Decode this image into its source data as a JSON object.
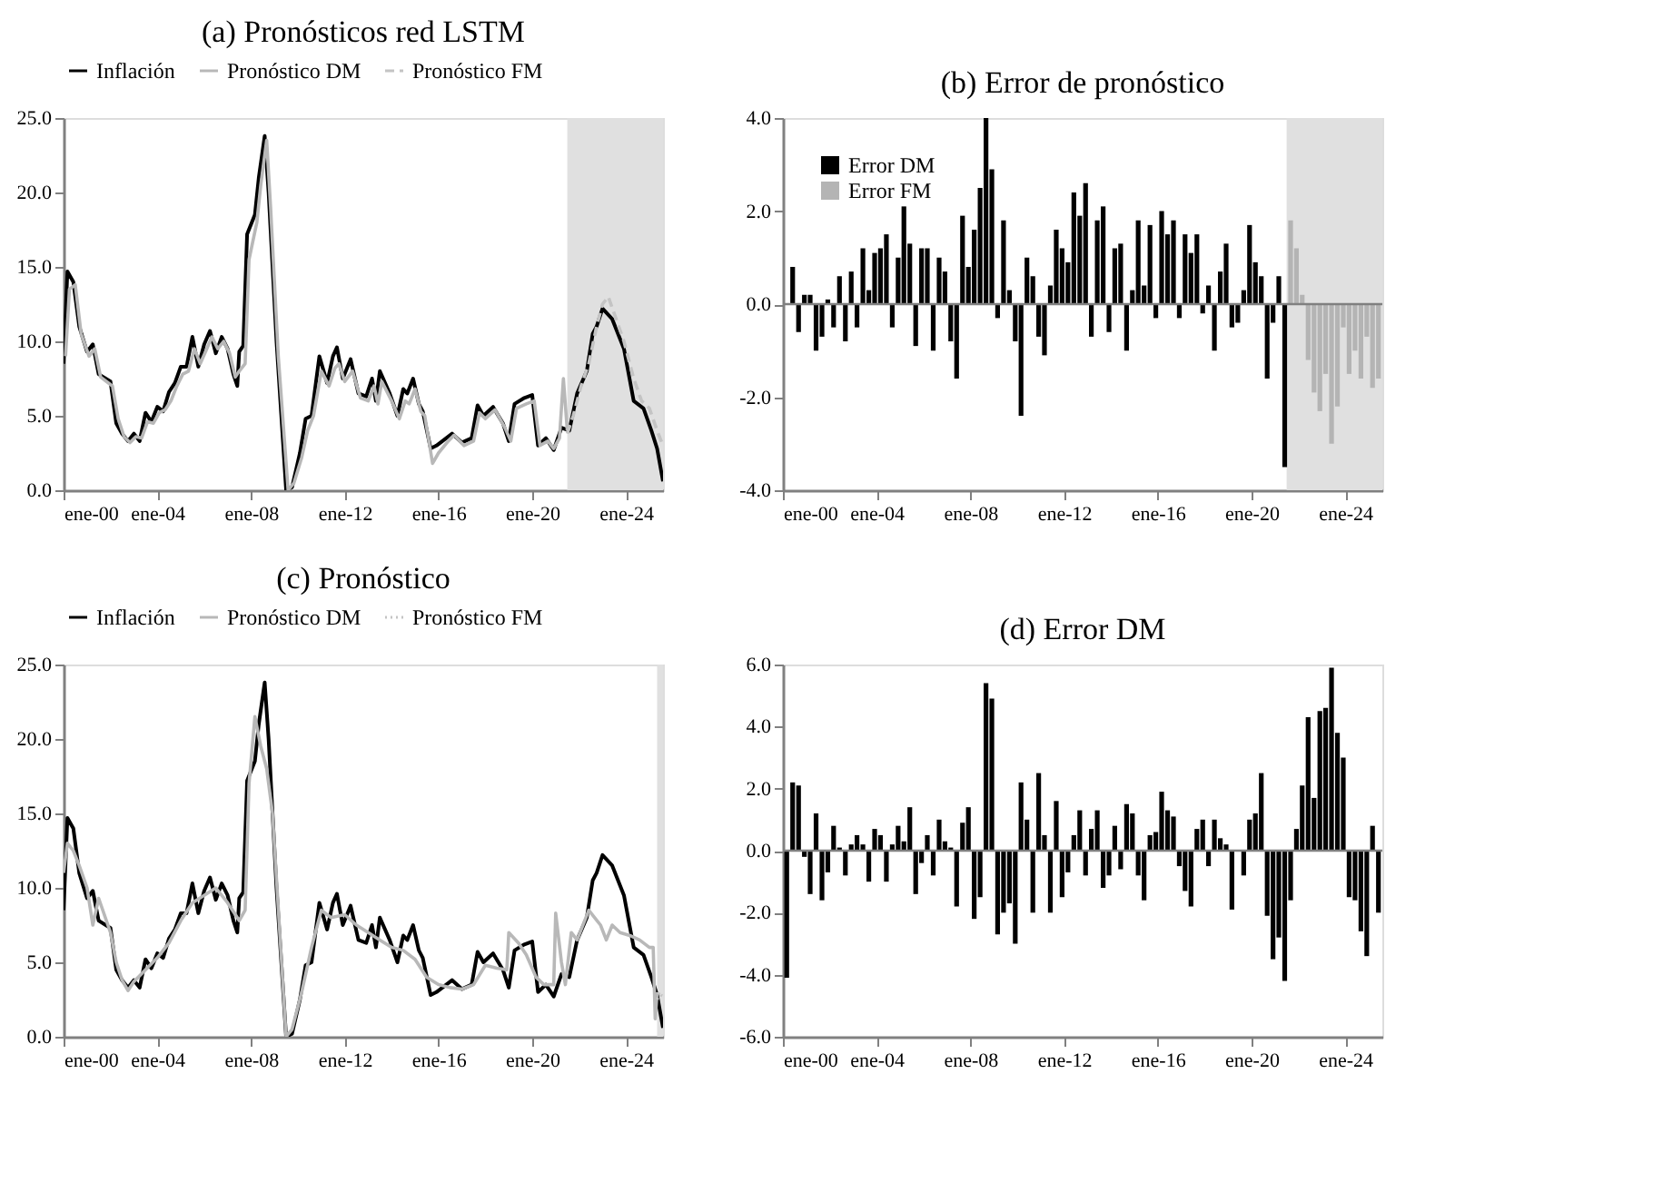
{
  "chart_data": [
    {
      "type": "line",
      "title": "(a) Pronósticos red LSTM",
      "xlim": [
        "2000-01",
        "2025-08"
      ],
      "ylim": [
        0,
        25
      ],
      "xticks": [
        {
          "value": "2000-01",
          "label": "ene-00"
        },
        {
          "value": "2004-01",
          "label": "ene-04"
        },
        {
          "value": "2008-01",
          "label": "ene-08"
        },
        {
          "value": "2012-01",
          "label": "ene-12"
        },
        {
          "value": "2016-01",
          "label": "ene-16"
        },
        {
          "value": "2020-01",
          "label": "ene-20"
        },
        {
          "value": "2024-01",
          "label": "ene-24"
        }
      ],
      "yticks": [
        {
          "value": 0,
          "label": "0.0"
        },
        {
          "value": 5,
          "label": "5.0"
        },
        {
          "value": 10,
          "label": "10.0"
        },
        {
          "value": 15,
          "label": "15.0"
        },
        {
          "value": 20,
          "label": "20.0"
        },
        {
          "value": 25,
          "label": "25.0"
        }
      ],
      "grid": false,
      "legend": "top",
      "bands": [
        {
          "axis": "x",
          "from": "2021-07",
          "to": "2025-08",
          "color": "#e0e0e0"
        }
      ],
      "series": [
        {
          "name": "Inflación",
          "color": "#000000",
          "line_style": "solid",
          "x": [
            "2000-01",
            "2000-03",
            "2000-06",
            "2000-09",
            "2001-01",
            "2001-04",
            "2001-07",
            "2002-01",
            "2002-04",
            "2002-07",
            "2002-10",
            "2003-01",
            "2003-04",
            "2003-07",
            "2003-10",
            "2004-01",
            "2004-04",
            "2004-07",
            "2004-10",
            "2005-01",
            "2005-04",
            "2005-07",
            "2005-10",
            "2006-01",
            "2006-04",
            "2006-07",
            "2006-10",
            "2007-01",
            "2007-04",
            "2007-06",
            "2007-07",
            "2007-09",
            "2007-11",
            "2008-03",
            "2008-05",
            "2008-08",
            "2008-10",
            "2009-02",
            "2009-07",
            "2009-10",
            "2010-02",
            "2010-05",
            "2010-08",
            "2010-09",
            "2010-12",
            "2011-04",
            "2011-07",
            "2011-09",
            "2011-12",
            "2012-04",
            "2012-08",
            "2012-12",
            "2013-03",
            "2013-05",
            "2013-07",
            "2013-12",
            "2014-04",
            "2014-07",
            "2014-09",
            "2014-12",
            "2015-03",
            "2015-05",
            "2015-09",
            "2015-12",
            "2016-05",
            "2016-08",
            "2017-01",
            "2017-06",
            "2017-09",
            "2017-12",
            "2018-05",
            "2018-10",
            "2019-01",
            "2019-04",
            "2019-09",
            "2020-01",
            "2020-04",
            "2020-08",
            "2020-12",
            "2021-04",
            "2021-08",
            "2021-12",
            "2022-05",
            "2022-08",
            "2022-10",
            "2023-01",
            "2023-06",
            "2023-12",
            "2024-05",
            "2024-10",
            "2025-02",
            "2025-05",
            "2025-08"
          ],
          "values": [
            8.5,
            14.7,
            14.0,
            11.0,
            9.3,
            9.8,
            7.8,
            7.3,
            4.5,
            3.8,
            3.3,
            3.8,
            3.3,
            5.2,
            4.6,
            5.6,
            5.3,
            6.6,
            7.2,
            8.3,
            8.3,
            10.3,
            8.3,
            9.8,
            10.7,
            9.2,
            10.3,
            9.5,
            7.8,
            7.0,
            9.3,
            9.7,
            17.2,
            18.5,
            21.0,
            23.8,
            20.0,
            10.0,
            0.0,
            0.2,
            2.5,
            4.8,
            5.0,
            6.0,
            9.0,
            7.2,
            9.0,
            9.6,
            7.5,
            8.8,
            6.5,
            6.3,
            7.5,
            6.0,
            8.0,
            6.5,
            5.0,
            6.8,
            6.5,
            7.5,
            5.8,
            5.3,
            2.8,
            3.0,
            3.5,
            3.8,
            3.2,
            3.5,
            5.7,
            5.0,
            5.6,
            4.5,
            3.3,
            5.8,
            6.2,
            6.4,
            3.0,
            3.5,
            2.7,
            4.2,
            4.0,
            6.5,
            8.0,
            10.5,
            11.0,
            12.2,
            11.5,
            9.5,
            6.0,
            5.5,
            4.0,
            2.8,
            0.6
          ]
        },
        {
          "name": "Pronóstico DM",
          "color": "#b8b8b8",
          "line_style": "solid",
          "x": [
            "2000-02",
            "2000-04",
            "2000-07",
            "2000-10",
            "2001-02",
            "2001-05",
            "2001-08",
            "2002-02",
            "2002-05",
            "2002-08",
            "2002-11",
            "2003-02",
            "2003-05",
            "2003-08",
            "2003-11",
            "2004-02",
            "2004-05",
            "2004-08",
            "2004-11",
            "2005-02",
            "2005-05",
            "2005-08",
            "2005-11",
            "2006-02",
            "2006-05",
            "2006-08",
            "2006-11",
            "2007-02",
            "2007-05",
            "2007-07",
            "2007-10",
            "2007-12",
            "2008-04",
            "2008-06",
            "2008-09",
            "2008-11",
            "2009-03",
            "2009-08",
            "2009-11",
            "2010-03",
            "2010-06",
            "2010-09",
            "2010-11",
            "2011-01",
            "2011-05",
            "2011-08",
            "2011-10",
            "2012-01",
            "2012-05",
            "2012-09",
            "2013-01",
            "2013-04",
            "2013-06",
            "2013-08",
            "2014-01",
            "2014-05",
            "2014-08",
            "2014-10",
            "2015-01",
            "2015-04",
            "2015-06",
            "2015-10",
            "2016-01",
            "2016-06",
            "2016-09",
            "2017-02",
            "2017-07",
            "2017-10",
            "2018-01",
            "2018-06",
            "2018-11",
            "2019-02",
            "2019-05",
            "2019-10",
            "2020-02",
            "2020-05",
            "2020-09",
            "2020-12",
            "2021-03",
            "2021-05",
            "2021-07"
          ],
          "values": [
            9.0,
            13.5,
            13.8,
            10.5,
            9.0,
            9.5,
            7.6,
            7.0,
            4.8,
            3.6,
            3.2,
            3.6,
            3.5,
            4.6,
            4.5,
            5.2,
            5.4,
            6.0,
            7.0,
            7.8,
            8.0,
            9.5,
            8.5,
            9.4,
            10.3,
            9.5,
            10.0,
            9.2,
            7.6,
            8.0,
            8.5,
            15.5,
            18.0,
            20.5,
            23.5,
            19.0,
            9.0,
            0.0,
            0.5,
            2.2,
            4.0,
            5.0,
            6.5,
            8.0,
            7.0,
            8.2,
            8.5,
            7.3,
            8.0,
            6.2,
            6.0,
            7.0,
            5.8,
            7.3,
            6.0,
            4.8,
            6.0,
            5.8,
            6.8,
            5.3,
            5.0,
            1.8,
            2.5,
            3.3,
            3.7,
            3.0,
            3.3,
            5.2,
            4.8,
            5.4,
            4.2,
            3.3,
            5.5,
            5.8,
            6.0,
            3.0,
            3.3,
            2.8,
            3.5,
            7.5,
            4.0
          ]
        },
        {
          "name": "Pronóstico FM",
          "color": "#c4c4c4",
          "line_style": "dashed",
          "x": [
            "2021-07",
            "2021-10",
            "2022-02",
            "2022-06",
            "2022-10",
            "2023-01",
            "2023-04",
            "2023-08",
            "2023-12",
            "2024-05",
            "2024-09",
            "2025-01",
            "2025-05",
            "2025-08"
          ],
          "values": [
            3.8,
            5.0,
            7.0,
            8.5,
            11.0,
            12.5,
            13.0,
            11.5,
            10.0,
            7.5,
            6.0,
            5.5,
            4.0,
            3.0
          ]
        }
      ]
    },
    {
      "type": "bar",
      "title": "(b) Error de pronóstico",
      "xlim": [
        "2000-01",
        "2025-08"
      ],
      "ylim": [
        -4,
        4
      ],
      "x": [
        "2000-06",
        "2000-09",
        "2000-12",
        "2001-03",
        "2001-06",
        "2001-09",
        "2001-12",
        "2002-03",
        "2002-06",
        "2002-09",
        "2002-12",
        "2003-03",
        "2003-06",
        "2003-09",
        "2003-12",
        "2004-03",
        "2004-06",
        "2004-09",
        "2004-12",
        "2005-03",
        "2005-06",
        "2005-09",
        "2005-12",
        "2006-03",
        "2006-06",
        "2006-09",
        "2006-12",
        "2007-03",
        "2007-06",
        "2007-09",
        "2007-12",
        "2008-03",
        "2008-06",
        "2008-09",
        "2008-12",
        "2009-03",
        "2009-06",
        "2009-09",
        "2009-12",
        "2010-03",
        "2010-06",
        "2010-09",
        "2010-12",
        "2011-03",
        "2011-06",
        "2011-09",
        "2011-12",
        "2012-03",
        "2012-06",
        "2012-09",
        "2012-12",
        "2013-03",
        "2013-06",
        "2013-09",
        "2013-12",
        "2014-03",
        "2014-06",
        "2014-09",
        "2014-12",
        "2015-03",
        "2015-06",
        "2015-09",
        "2015-12",
        "2016-03",
        "2016-06",
        "2016-09",
        "2016-12",
        "2017-03",
        "2017-06",
        "2017-09",
        "2017-12",
        "2018-03",
        "2018-06",
        "2018-09",
        "2018-12",
        "2019-03",
        "2019-06",
        "2019-09",
        "2019-12",
        "2020-03",
        "2020-06",
        "2020-09",
        "2020-12",
        "2021-03",
        "2021-06",
        "2021-09",
        "2021-12",
        "2022-03",
        "2022-06",
        "2022-09",
        "2022-12",
        "2023-03",
        "2023-06",
        "2023-09",
        "2023-12",
        "2024-03",
        "2024-06",
        "2024-09",
        "2024-12",
        "2025-03",
        "2025-06"
      ],
      "xticks": [
        {
          "value": "2000-01",
          "label": "ene-00"
        },
        {
          "value": "2004-01",
          "label": "ene-04"
        },
        {
          "value": "2008-01",
          "label": "ene-08"
        },
        {
          "value": "2012-01",
          "label": "ene-12"
        },
        {
          "value": "2016-01",
          "label": "ene-16"
        },
        {
          "value": "2020-01",
          "label": "ene-20"
        },
        {
          "value": "2024-01",
          "label": "ene-24"
        }
      ],
      "yticks": [
        {
          "value": -4,
          "label": "-4.0"
        },
        {
          "value": -2,
          "label": "-2.0"
        },
        {
          "value": 0,
          "label": "0.0"
        },
        {
          "value": 2,
          "label": "2.0"
        },
        {
          "value": 4,
          "label": "4.0"
        }
      ],
      "grid": false,
      "legend": "top left",
      "bands": [
        {
          "axis": "x",
          "from": "2021-07",
          "to": "2025-08",
          "color": "#e0e0e0"
        }
      ],
      "ref_lines": [
        {
          "axis": "y",
          "value": 0,
          "color": "#808080"
        }
      ],
      "series": [
        {
          "name": "Error DM",
          "color": "#000000",
          "values": [
            0.8,
            -0.6,
            0.2,
            0.2,
            -1.0,
            -0.7,
            0.1,
            -0.5,
            0.6,
            -0.8,
            0.7,
            -0.5,
            1.2,
            0.3,
            1.1,
            1.2,
            1.5,
            -0.5,
            1.0,
            2.1,
            1.3,
            -0.9,
            1.2,
            1.2,
            -1.0,
            1.0,
            0.7,
            -0.8,
            -1.6,
            1.9,
            0.8,
            1.6,
            2.5,
            4.0,
            2.9,
            -0.3,
            1.8,
            0.3,
            -0.8,
            -2.4,
            1.0,
            0.6,
            -0.7,
            -1.1,
            0.4,
            1.6,
            1.2,
            0.9,
            2.4,
            1.9,
            2.6,
            -0.7,
            1.8,
            2.1,
            -0.6,
            1.2,
            1.3,
            -1.0,
            0.3,
            1.8,
            0.4,
            1.7,
            -0.3,
            2.0,
            1.5,
            1.8,
            -0.3,
            1.5,
            1.1,
            1.5,
            -0.2,
            0.4,
            -1.0,
            0.7,
            1.3,
            -0.5,
            -0.4,
            0.3,
            1.7,
            0.9,
            0.6,
            -1.6,
            -0.4,
            0.6,
            -3.5,
            null,
            null,
            null,
            null,
            null,
            null,
            null,
            null,
            null,
            null,
            null,
            null,
            null,
            null,
            null,
            null
          ]
        },
        {
          "name": "Error FM",
          "color": "#b4b4b4",
          "values": [
            null,
            null,
            null,
            null,
            null,
            null,
            null,
            null,
            null,
            null,
            null,
            null,
            null,
            null,
            null,
            null,
            null,
            null,
            null,
            null,
            null,
            null,
            null,
            null,
            null,
            null,
            null,
            null,
            null,
            null,
            null,
            null,
            null,
            null,
            null,
            null,
            null,
            null,
            null,
            null,
            null,
            null,
            null,
            null,
            null,
            null,
            null,
            null,
            null,
            null,
            null,
            null,
            null,
            null,
            null,
            null,
            null,
            null,
            null,
            null,
            null,
            null,
            null,
            null,
            null,
            null,
            null,
            null,
            null,
            null,
            null,
            null,
            null,
            null,
            null,
            null,
            null,
            null,
            null,
            null,
            null,
            null,
            null,
            null,
            null,
            1.8,
            1.2,
            0.2,
            -1.2,
            -1.9,
            -2.3,
            -1.5,
            -3.0,
            -2.2,
            -0.5,
            -1.5,
            -1.0,
            -1.6,
            -0.7,
            -1.8,
            -1.6
          ]
        }
      ]
    },
    {
      "type": "line",
      "title": "(c) Pronóstico",
      "xlim": [
        "2000-01",
        "2025-08"
      ],
      "ylim": [
        0,
        25
      ],
      "xticks": [
        {
          "value": "2000-01",
          "label": "ene-00"
        },
        {
          "value": "2004-01",
          "label": "ene-04"
        },
        {
          "value": "2008-01",
          "label": "ene-08"
        },
        {
          "value": "2012-01",
          "label": "ene-12"
        },
        {
          "value": "2016-01",
          "label": "ene-16"
        },
        {
          "value": "2020-01",
          "label": "ene-20"
        },
        {
          "value": "2024-01",
          "label": "ene-24"
        }
      ],
      "yticks": [
        {
          "value": 0,
          "label": "0.0"
        },
        {
          "value": 5,
          "label": "5.0"
        },
        {
          "value": 10,
          "label": "10.0"
        },
        {
          "value": 15,
          "label": "15.0"
        },
        {
          "value": 20,
          "label": "20.0"
        },
        {
          "value": 25,
          "label": "25.0"
        }
      ],
      "grid": false,
      "legend": "top",
      "bands": [
        {
          "axis": "x",
          "from": "2025-05",
          "to": "2025-08",
          "color": "#e0e0e0"
        }
      ],
      "series": [
        {
          "name": "Inflación",
          "color": "#000000",
          "line_style": "solid",
          "x": [
            "2000-01",
            "2000-03",
            "2000-06",
            "2000-09",
            "2001-01",
            "2001-04",
            "2001-07",
            "2002-01",
            "2002-04",
            "2002-07",
            "2002-10",
            "2003-01",
            "2003-04",
            "2003-07",
            "2003-10",
            "2004-01",
            "2004-04",
            "2004-07",
            "2004-10",
            "2005-01",
            "2005-04",
            "2005-07",
            "2005-10",
            "2006-01",
            "2006-04",
            "2006-07",
            "2006-10",
            "2007-01",
            "2007-04",
            "2007-06",
            "2007-07",
            "2007-09",
            "2007-11",
            "2008-03",
            "2008-05",
            "2008-08",
            "2008-10",
            "2009-02",
            "2009-07",
            "2009-10",
            "2010-02",
            "2010-05",
            "2010-08",
            "2010-09",
            "2010-12",
            "2011-04",
            "2011-07",
            "2011-09",
            "2011-12",
            "2012-04",
            "2012-08",
            "2012-12",
            "2013-03",
            "2013-05",
            "2013-07",
            "2013-12",
            "2014-04",
            "2014-07",
            "2014-09",
            "2014-12",
            "2015-03",
            "2015-05",
            "2015-09",
            "2015-12",
            "2016-05",
            "2016-08",
            "2017-01",
            "2017-06",
            "2017-09",
            "2017-12",
            "2018-05",
            "2018-10",
            "2019-01",
            "2019-04",
            "2019-09",
            "2020-01",
            "2020-04",
            "2020-08",
            "2020-12",
            "2021-04",
            "2021-08",
            "2021-12",
            "2022-05",
            "2022-08",
            "2022-10",
            "2023-01",
            "2023-06",
            "2023-12",
            "2024-05",
            "2024-10",
            "2025-02",
            "2025-05",
            "2025-08"
          ],
          "values": [
            8.5,
            14.7,
            14.0,
            11.0,
            9.3,
            9.8,
            7.8,
            7.3,
            4.5,
            3.8,
            3.3,
            3.8,
            3.3,
            5.2,
            4.6,
            5.6,
            5.3,
            6.6,
            7.2,
            8.3,
            8.3,
            10.3,
            8.3,
            9.8,
            10.7,
            9.2,
            10.3,
            9.5,
            7.8,
            7.0,
            9.3,
            9.7,
            17.2,
            18.5,
            21.0,
            23.8,
            20.0,
            10.0,
            0.0,
            0.2,
            2.5,
            4.8,
            5.0,
            6.0,
            9.0,
            7.2,
            9.0,
            9.6,
            7.5,
            8.8,
            6.5,
            6.3,
            7.5,
            6.0,
            8.0,
            6.5,
            5.0,
            6.8,
            6.5,
            7.5,
            5.8,
            5.3,
            2.8,
            3.0,
            3.5,
            3.8,
            3.2,
            3.5,
            5.7,
            5.0,
            5.6,
            4.5,
            3.3,
            5.8,
            6.2,
            6.4,
            3.0,
            3.5,
            2.7,
            4.2,
            4.0,
            6.5,
            8.0,
            10.5,
            11.0,
            12.2,
            11.5,
            9.5,
            6.0,
            5.5,
            4.0,
            2.8,
            0.6
          ]
        },
        {
          "name": "Pronóstico DM",
          "color": "#b8b8b8",
          "line_style": "solid",
          "x": [
            "2000-01",
            "2000-03",
            "2000-06",
            "2000-09",
            "2001-01",
            "2001-04",
            "2001-07",
            "2002-01",
            "2002-04",
            "2002-07",
            "2002-10",
            "2003-01",
            "2003-07",
            "2004-01",
            "2004-07",
            "2005-01",
            "2005-07",
            "2006-01",
            "2006-07",
            "2007-01",
            "2007-07",
            "2007-10",
            "2007-12",
            "2008-03",
            "2008-06",
            "2008-09",
            "2008-12",
            "2009-07",
            "2009-10",
            "2010-03",
            "2010-08",
            "2011-01",
            "2011-06",
            "2012-01",
            "2012-07",
            "2013-01",
            "2013-07",
            "2014-01",
            "2014-07",
            "2015-01",
            "2015-07",
            "2016-01",
            "2016-07",
            "2017-01",
            "2017-07",
            "2018-01",
            "2018-07",
            "2018-12",
            "2019-01",
            "2019-06",
            "2019-10",
            "2020-03",
            "2020-07",
            "2020-12",
            "2021-01",
            "2021-04",
            "2021-06",
            "2021-09",
            "2021-12",
            "2022-06",
            "2022-12",
            "2023-03",
            "2023-06",
            "2023-10",
            "2024-03",
            "2024-08",
            "2025-01",
            "2025-03",
            "2025-04",
            "2025-05"
          ],
          "values": [
            11.0,
            13.0,
            12.5,
            11.5,
            10.0,
            7.5,
            9.3,
            7.0,
            5.0,
            3.8,
            3.1,
            3.7,
            4.5,
            5.3,
            6.3,
            7.8,
            9.0,
            9.5,
            10.0,
            9.0,
            7.8,
            8.5,
            17.0,
            21.5,
            19.5,
            18.0,
            15.0,
            0.0,
            0.5,
            3.0,
            6.0,
            8.5,
            8.0,
            8.2,
            7.5,
            7.0,
            6.5,
            6.0,
            5.8,
            5.2,
            4.0,
            3.5,
            3.3,
            3.2,
            3.5,
            4.8,
            4.6,
            4.5,
            7.0,
            6.3,
            5.5,
            4.0,
            3.5,
            3.5,
            8.3,
            5.0,
            3.5,
            7.0,
            6.5,
            8.5,
            7.5,
            6.5,
            7.5,
            7.0,
            6.8,
            6.5,
            6.0,
            6.0,
            1.2,
            3.0
          ]
        },
        {
          "name": "Pronóstico FM",
          "color": "#c4c4c4",
          "line_style": "dotted",
          "x": [
            "2025-05",
            "2025-06",
            "2025-07",
            "2025-08"
          ],
          "values": [
            2.5,
            3.0,
            2.8,
            2.7
          ]
        }
      ]
    },
    {
      "type": "bar",
      "title": "(d) Error DM",
      "xlim": [
        "2000-01",
        "2025-08"
      ],
      "ylim": [
        -6,
        6
      ],
      "x": [
        "2000-03",
        "2000-06",
        "2000-09",
        "2000-12",
        "2001-03",
        "2001-06",
        "2001-09",
        "2001-12",
        "2002-03",
        "2002-06",
        "2002-09",
        "2002-12",
        "2003-03",
        "2003-06",
        "2003-09",
        "2003-12",
        "2004-03",
        "2004-06",
        "2004-09",
        "2004-12",
        "2005-03",
        "2005-06",
        "2005-09",
        "2005-12",
        "2006-03",
        "2006-06",
        "2006-09",
        "2006-12",
        "2007-03",
        "2007-06",
        "2007-09",
        "2007-12",
        "2008-03",
        "2008-06",
        "2008-09",
        "2008-12",
        "2009-03",
        "2009-06",
        "2009-09",
        "2009-12",
        "2010-03",
        "2010-06",
        "2010-09",
        "2010-12",
        "2011-03",
        "2011-06",
        "2011-09",
        "2011-12",
        "2012-03",
        "2012-06",
        "2012-09",
        "2012-12",
        "2013-03",
        "2013-06",
        "2013-09",
        "2013-12",
        "2014-03",
        "2014-06",
        "2014-09",
        "2014-12",
        "2015-03",
        "2015-06",
        "2015-09",
        "2015-12",
        "2016-03",
        "2016-06",
        "2016-09",
        "2016-12",
        "2017-03",
        "2017-06",
        "2017-09",
        "2017-12",
        "2018-03",
        "2018-06",
        "2018-09",
        "2018-12",
        "2019-03",
        "2019-06",
        "2019-09",
        "2019-12",
        "2020-03",
        "2020-06",
        "2020-09",
        "2020-12",
        "2021-03",
        "2021-06",
        "2021-09",
        "2021-12",
        "2022-03",
        "2022-06",
        "2022-09",
        "2022-12",
        "2023-03",
        "2023-06",
        "2023-09",
        "2023-12",
        "2024-03",
        "2024-06",
        "2024-09",
        "2024-12",
        "2025-03",
        "2025-06"
      ],
      "xticks": [
        {
          "value": "2000-01",
          "label": "ene-00"
        },
        {
          "value": "2004-01",
          "label": "ene-04"
        },
        {
          "value": "2008-01",
          "label": "ene-08"
        },
        {
          "value": "2012-01",
          "label": "ene-12"
        },
        {
          "value": "2016-01",
          "label": "ene-16"
        },
        {
          "value": "2020-01",
          "label": "ene-20"
        },
        {
          "value": "2024-01",
          "label": "ene-24"
        }
      ],
      "yticks": [
        {
          "value": -6,
          "label": "-6.0"
        },
        {
          "value": -4,
          "label": "-4.0"
        },
        {
          "value": -2,
          "label": "-2.0"
        },
        {
          "value": 0,
          "label": "0.0"
        },
        {
          "value": 2,
          "label": "2.0"
        },
        {
          "value": 4,
          "label": "4.0"
        },
        {
          "value": 6,
          "label": "6.0"
        }
      ],
      "grid": false,
      "ref_lines": [
        {
          "axis": "y",
          "value": 0,
          "color": "#808080"
        }
      ],
      "series": [
        {
          "color": "#000000",
          "values": [
            -4.1,
            2.2,
            2.1,
            -0.2,
            -1.4,
            1.2,
            -1.6,
            -0.7,
            0.8,
            0.1,
            -0.8,
            0.2,
            0.5,
            0.2,
            -1.0,
            0.7,
            0.5,
            -1.0,
            0.2,
            0.8,
            0.3,
            1.4,
            -1.4,
            -0.4,
            0.5,
            -0.8,
            1.0,
            0.3,
            0.1,
            -1.8,
            0.9,
            1.4,
            -2.2,
            -1.5,
            5.4,
            4.9,
            -2.7,
            -2.0,
            -1.7,
            -3.0,
            2.2,
            1.0,
            -2.0,
            2.5,
            0.5,
            -2.0,
            1.6,
            -1.5,
            -0.7,
            0.5,
            1.3,
            -0.8,
            0.7,
            1.3,
            -1.2,
            -0.8,
            0.8,
            -0.6,
            1.5,
            1.2,
            -0.8,
            -1.6,
            0.5,
            0.6,
            1.9,
            1.3,
            1.1,
            -0.5,
            -1.3,
            -1.8,
            0.7,
            1.0,
            -0.5,
            1.0,
            0.4,
            0.2,
            -1.9,
            0.0,
            -0.8,
            1.0,
            1.2,
            2.5,
            -2.1,
            -3.5,
            -2.8,
            -4.2,
            -1.6,
            0.7,
            2.1,
            4.3,
            1.7,
            4.5,
            4.6,
            5.9,
            3.8,
            3.0,
            -1.5,
            -1.6,
            -2.6,
            -3.4,
            0.8,
            -2.0
          ]
        }
      ]
    }
  ]
}
